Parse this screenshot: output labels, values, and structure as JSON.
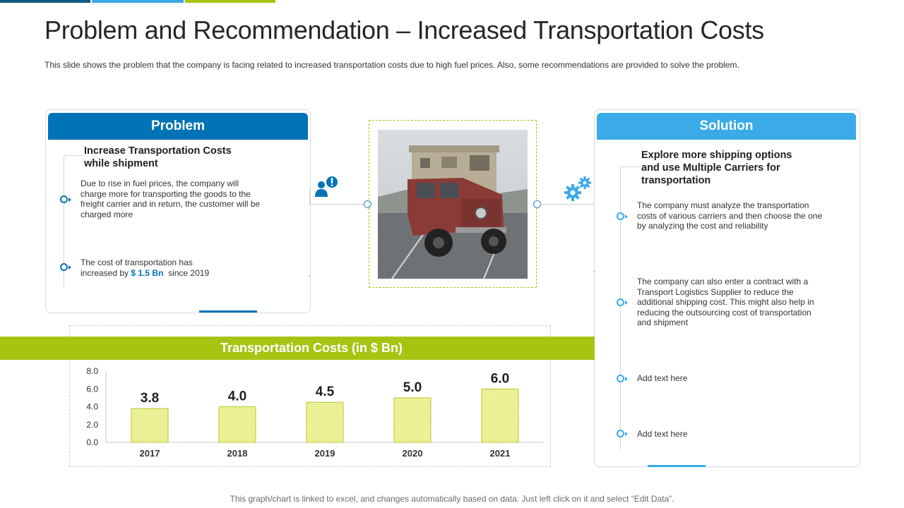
{
  "slide": {
    "title": "Problem and Recommendation – Increased Transportation Costs",
    "subtitle": "This slide shows the problem that the company is facing related to increased transportation costs due to high fuel prices. Also, some recommendations are provided to solve the problem.",
    "footer": "This graph/chart is linked to excel,  and changes automatically based on data. Just left click on it and select “Edit Data”."
  },
  "colors": {
    "dark_blue": "#0073b6",
    "light_blue": "#3aabe8",
    "lime": "#a8c413",
    "bar_fill": "#eef29c",
    "bar_stroke": "#b6c82b",
    "top_bar": [
      "#0f5a82",
      "#3aabe8",
      "#a8c413"
    ]
  },
  "problem": {
    "header": "Problem",
    "heading_line1": "Increase Transportation Costs",
    "heading_line2": "while shipment",
    "points": [
      {
        "lines": [
          "Due to  rise in fuel prices, the company will",
          "charge more for transporting the goods to the",
          "freight carrier and in return, the customer will be",
          "charged more"
        ]
      },
      {
        "line1": "The cost of transportation has",
        "line2_prefix": "increased by ",
        "highlight": "$ 1.5 Bn",
        "line2_suffix": "  since 2019"
      }
    ],
    "icon": "user-alert-icon"
  },
  "image": {
    "description_icon": "truck-photo"
  },
  "solution": {
    "header": "Solution",
    "heading_lines": [
      "Explore more shipping options",
      "and use Multiple Carriers for",
      "transportation"
    ],
    "icon": "gears-icon",
    "points": [
      {
        "lines": [
          "The company must analyze the transportation",
          "costs of various carriers and then choose the one",
          "by analyzing the cost and reliability"
        ]
      },
      {
        "lines": [
          "The company can also enter a contract with a",
          "Transport Logistics Supplier to reduce the",
          "additional shipping cost. This might also help in",
          "reducing the outsourcing cost of transportation",
          "and shipment"
        ]
      },
      {
        "lines": [
          "Add text here"
        ]
      },
      {
        "lines": [
          "Add text here"
        ]
      }
    ]
  },
  "chart_data": {
    "type": "bar",
    "title": "Transportation Costs (in $ Bn)",
    "categories": [
      "2017",
      "2018",
      "2019",
      "2020",
      "2021"
    ],
    "values": [
      3.8,
      4.0,
      4.5,
      5.0,
      6.0
    ],
    "value_labels": [
      "3.8",
      "4.0",
      "4.5",
      "5.0",
      "6.0"
    ],
    "y_ticks": [
      "0.0",
      "2.0",
      "4.0",
      "6.0",
      "8.0"
    ],
    "ylim": [
      0,
      8
    ],
    "xlabel": "",
    "ylabel": "",
    "grid": false,
    "legend": "none"
  }
}
